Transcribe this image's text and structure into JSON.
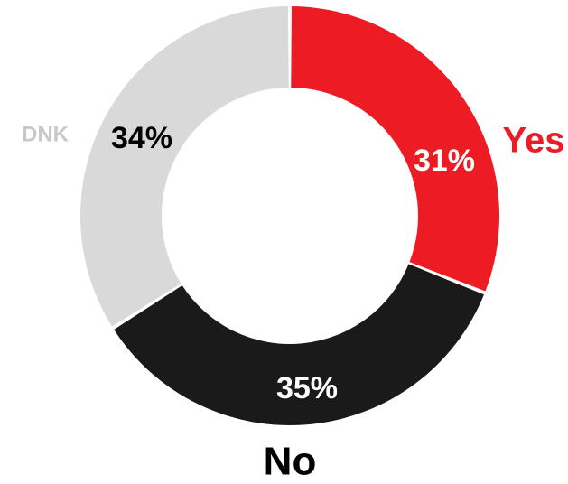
{
  "chart_data": {
    "type": "pie",
    "variant": "donut",
    "categories": [
      "Yes",
      "No",
      "DNK"
    ],
    "values": [
      31,
      35,
      34
    ],
    "value_labels": [
      "31%",
      "35%",
      "34%"
    ],
    "colors": [
      "#ed1c24",
      "#1a1a1a",
      "#d9d9d9"
    ],
    "label_colors": [
      "#ffffff",
      "#ffffff",
      "#000000"
    ],
    "category_label_colors": [
      "#ed1c24",
      "#000000",
      "#c8c8c8"
    ],
    "legend": "none"
  }
}
